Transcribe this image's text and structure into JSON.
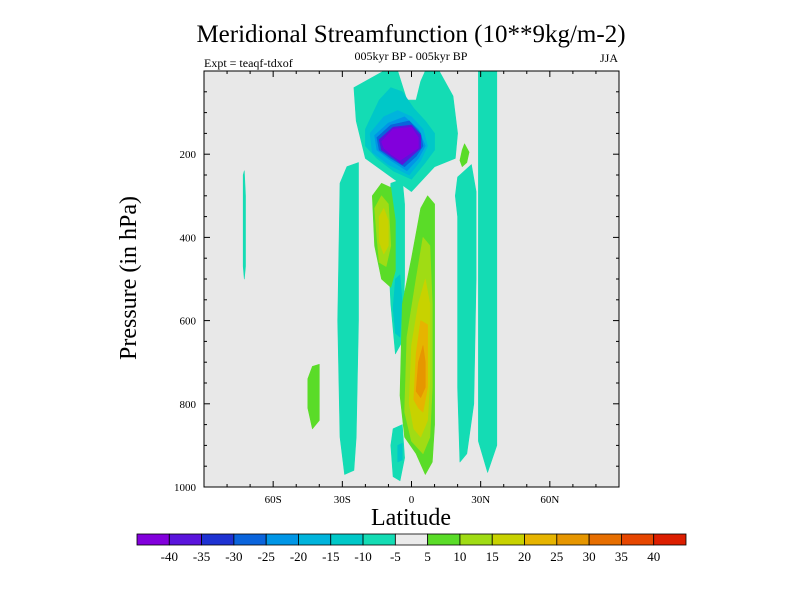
{
  "chart_data": {
    "type": "heatmap",
    "title": "Meridional Streamfunction (10**9kg/m-2)",
    "subtitle": "005kyr BP - 005kyr BP",
    "left_label": "Expt = teaqf-tdxof",
    "right_label": "JJA",
    "xlabel": "Latitude",
    "ylabel": "Pressure (in hPa)",
    "xlim": [
      -90,
      90
    ],
    "ylim": [
      0,
      1000
    ],
    "y_reversed": true,
    "x_ticks": [
      -60,
      -30,
      0,
      30,
      60
    ],
    "x_tick_labels": [
      "60S",
      "30S",
      "0",
      "30N",
      "60N"
    ],
    "y_ticks": [
      200,
      400,
      600,
      800,
      1000
    ],
    "y_tick_labels": [
      "200",
      "400",
      "600",
      "800",
      "1000"
    ],
    "background_color": "#e8e8e8",
    "colorbar": {
      "labels": [
        "-40",
        "-35",
        "-30",
        "-25",
        "-20",
        "-15",
        "-10",
        "-5",
        "5",
        "10",
        "15",
        "20",
        "25",
        "30",
        "35",
        "40"
      ],
      "colors": [
        "#8200dc",
        "#5a14dc",
        "#1e32d2",
        "#0a64dc",
        "#0096e6",
        "#00b4dc",
        "#00c8c8",
        "#14dcb4",
        "#ebebeb",
        "#5adc28",
        "#a0dc14",
        "#c8d200",
        "#e6b400",
        "#e69600",
        "#e66e00",
        "#e64600",
        "#dc1e00"
      ]
    },
    "regions": [
      {
        "level": "-5",
        "color": "#14dcb4",
        "points": [
          [
            -25,
            40
          ],
          [
            -12,
            0
          ],
          [
            -6,
            0
          ],
          [
            -2,
            70
          ],
          [
            2,
            70
          ],
          [
            4,
            25
          ],
          [
            6,
            0
          ],
          [
            12,
            0
          ],
          [
            18,
            60
          ],
          [
            20,
            150
          ],
          [
            19,
            210
          ],
          [
            10,
            230
          ],
          [
            0,
            290
          ],
          [
            -10,
            250
          ],
          [
            -20,
            210
          ],
          [
            -24,
            120
          ]
        ]
      },
      {
        "level": "-5",
        "color": "#14dcb4",
        "points": [
          [
            29,
            0
          ],
          [
            37,
            0
          ],
          [
            37,
            200
          ],
          [
            37,
            500
          ],
          [
            37,
            900
          ],
          [
            33,
            965
          ],
          [
            29,
            890
          ],
          [
            29,
            520
          ],
          [
            29,
            250
          ]
        ]
      },
      {
        "level": "-5",
        "color": "#14dcb4",
        "points": [
          [
            20,
            350
          ],
          [
            19,
            300
          ],
          [
            20,
            255
          ],
          [
            26,
            225
          ],
          [
            28,
            290
          ],
          [
            28,
            500
          ],
          [
            27,
            800
          ],
          [
            24,
            920
          ],
          [
            21,
            940
          ],
          [
            20,
            760
          ],
          [
            20,
            480
          ]
        ]
      },
      {
        "level": "-5",
        "color": "#14dcb4",
        "points": [
          [
            -31,
            270
          ],
          [
            -28,
            230
          ],
          [
            -23,
            220
          ],
          [
            -23,
            600
          ],
          [
            -24,
            880
          ],
          [
            -25,
            960
          ],
          [
            -29,
            970
          ],
          [
            -31,
            880
          ],
          [
            -32,
            600
          ]
        ]
      },
      {
        "level": "-5",
        "color": "#14dcb4",
        "points": [
          [
            -9,
            270
          ],
          [
            -4,
            260
          ],
          [
            -3,
            320
          ],
          [
            -3,
            500
          ],
          [
            -4,
            650
          ],
          [
            -7,
            680
          ],
          [
            -9,
            560
          ],
          [
            -10,
            440
          ]
        ]
      },
      {
        "level": "-5",
        "color": "#14dcb4",
        "points": [
          [
            -8,
            860
          ],
          [
            -4,
            850
          ],
          [
            -3,
            930
          ],
          [
            -5,
            985
          ],
          [
            -8,
            975
          ],
          [
            -9,
            900
          ]
        ]
      },
      {
        "level": "-5",
        "color": "#14dcb4",
        "points": [
          [
            -73,
            250
          ],
          [
            -72.5,
            240
          ],
          [
            -72,
            300
          ],
          [
            -72,
            470
          ],
          [
            -72.5,
            500
          ],
          [
            -73,
            470
          ],
          [
            -73,
            300
          ]
        ]
      },
      {
        "level": "-10",
        "color": "#00c8c8",
        "points": [
          [
            -20,
            140
          ],
          [
            -14,
            70
          ],
          [
            -9,
            40
          ],
          [
            -4,
            50
          ],
          [
            1,
            90
          ],
          [
            6,
            120
          ],
          [
            10,
            150
          ],
          [
            10,
            190
          ],
          [
            6,
            220
          ],
          [
            0,
            260
          ],
          [
            -8,
            240
          ],
          [
            -15,
            210
          ],
          [
            -20,
            180
          ]
        ]
      },
      {
        "level": "-10",
        "color": "#00c8c8",
        "points": [
          [
            -7,
            500
          ],
          [
            -5,
            490
          ],
          [
            -4,
            560
          ],
          [
            -5,
            640
          ],
          [
            -7,
            630
          ],
          [
            -8,
            570
          ]
        ]
      },
      {
        "level": "-10",
        "color": "#00c8c8",
        "points": [
          [
            -6,
            900
          ],
          [
            -4,
            895
          ],
          [
            -4,
            935
          ],
          [
            -6,
            940
          ]
        ]
      },
      {
        "level": "-15",
        "color": "#00b4dc",
        "points": [
          [
            -18,
            150
          ],
          [
            -12,
            110
          ],
          [
            -6,
            95
          ],
          [
            0,
            110
          ],
          [
            5,
            140
          ],
          [
            7,
            180
          ],
          [
            4,
            215
          ],
          [
            -1,
            250
          ],
          [
            -10,
            225
          ],
          [
            -17,
            195
          ]
        ]
      },
      {
        "level": "-20",
        "color": "#0096e6",
        "points": [
          [
            -16,
            155
          ],
          [
            -10,
            125
          ],
          [
            -3,
            110
          ],
          [
            3,
            140
          ],
          [
            6,
            180
          ],
          [
            3,
            210
          ],
          [
            -2,
            240
          ],
          [
            -9,
            215
          ],
          [
            -15,
            190
          ]
        ]
      },
      {
        "level": "-25",
        "color": "#0a64dc",
        "points": [
          [
            -15,
            160
          ],
          [
            -9,
            130
          ],
          [
            -1,
            120
          ],
          [
            4,
            150
          ],
          [
            5,
            180
          ],
          [
            2,
            205
          ],
          [
            -3,
            230
          ],
          [
            -9,
            210
          ],
          [
            -14,
            190
          ]
        ]
      },
      {
        "level": "-35",
        "color": "#5a14dc",
        "points": [
          [
            -14,
            165
          ],
          [
            -8,
            135
          ],
          [
            0,
            130
          ],
          [
            4,
            155
          ],
          [
            4,
            185
          ],
          [
            0,
            205
          ],
          [
            -4,
            225
          ],
          [
            -9,
            205
          ],
          [
            -13,
            190
          ]
        ]
      },
      {
        "level": "-40",
        "color": "#8200dc",
        "points": [
          [
            -13,
            170
          ],
          [
            -8,
            140
          ],
          [
            0,
            135
          ],
          [
            3,
            160
          ],
          [
            3,
            185
          ],
          [
            -1,
            200
          ],
          [
            -5,
            215
          ],
          [
            -9,
            200
          ],
          [
            -12,
            185
          ]
        ]
      },
      {
        "level": "5",
        "color": "#5adc28",
        "points": [
          [
            -17,
            300
          ],
          [
            -13,
            270
          ],
          [
            -9,
            280
          ],
          [
            -7,
            360
          ],
          [
            -7,
            480
          ],
          [
            -9,
            520
          ],
          [
            -13,
            500
          ],
          [
            -16,
            420
          ]
        ]
      },
      {
        "level": "5",
        "color": "#5adc28",
        "points": [
          [
            -5,
            780
          ],
          [
            -4,
            560
          ],
          [
            0,
            450
          ],
          [
            4,
            330
          ],
          [
            7,
            300
          ],
          [
            10,
            320
          ],
          [
            10,
            500
          ],
          [
            10,
            700
          ],
          [
            10,
            850
          ],
          [
            9,
            940
          ],
          [
            6,
            970
          ],
          [
            2,
            920
          ],
          [
            -3,
            880
          ]
        ]
      },
      {
        "level": "5",
        "color": "#5adc28",
        "points": [
          [
            22,
            190
          ],
          [
            23,
            175
          ],
          [
            25,
            195
          ],
          [
            24,
            220
          ],
          [
            22,
            230
          ],
          [
            21,
            215
          ]
        ]
      },
      {
        "level": "5",
        "color": "#5adc28",
        "points": [
          [
            -45,
            740
          ],
          [
            -43,
            710
          ],
          [
            -40,
            705
          ],
          [
            -40,
            780
          ],
          [
            -40,
            840
          ],
          [
            -43,
            860
          ],
          [
            -45,
            810
          ]
        ]
      },
      {
        "level": "10",
        "color": "#a0dc14",
        "points": [
          [
            -16,
            330
          ],
          [
            -13,
            300
          ],
          [
            -10,
            320
          ],
          [
            -9,
            420
          ],
          [
            -11,
            470
          ],
          [
            -14,
            460
          ],
          [
            -15,
            400
          ]
        ]
      },
      {
        "level": "10",
        "color": "#a0dc14",
        "points": [
          [
            -3,
            820
          ],
          [
            -2,
            640
          ],
          [
            2,
            500
          ],
          [
            5,
            400
          ],
          [
            8,
            420
          ],
          [
            9,
            560
          ],
          [
            9,
            760
          ],
          [
            8,
            880
          ],
          [
            5,
            920
          ],
          [
            0,
            890
          ]
        ]
      },
      {
        "level": "15",
        "color": "#c8d200",
        "points": [
          [
            -14,
            350
          ],
          [
            -12,
            330
          ],
          [
            -10,
            360
          ],
          [
            -10,
            420
          ],
          [
            -12,
            440
          ],
          [
            -14,
            410
          ]
        ]
      },
      {
        "level": "15",
        "color": "#c8d200",
        "points": [
          [
            -1,
            800
          ],
          [
            0,
            660
          ],
          [
            3,
            560
          ],
          [
            6,
            500
          ],
          [
            8,
            560
          ],
          [
            8,
            740
          ],
          [
            7,
            840
          ],
          [
            4,
            880
          ],
          [
            1,
            860
          ]
        ]
      },
      {
        "level": "20",
        "color": "#e6b400",
        "points": [
          [
            1,
            790
          ],
          [
            2,
            680
          ],
          [
            4,
            600
          ],
          [
            7,
            610
          ],
          [
            7,
            760
          ],
          [
            5,
            820
          ],
          [
            3,
            810
          ]
        ]
      },
      {
        "level": "25",
        "color": "#e69600",
        "points": [
          [
            2,
            770
          ],
          [
            3,
            700
          ],
          [
            5,
            660
          ],
          [
            6,
            700
          ],
          [
            6,
            760
          ],
          [
            4,
            785
          ]
        ]
      }
    ]
  }
}
